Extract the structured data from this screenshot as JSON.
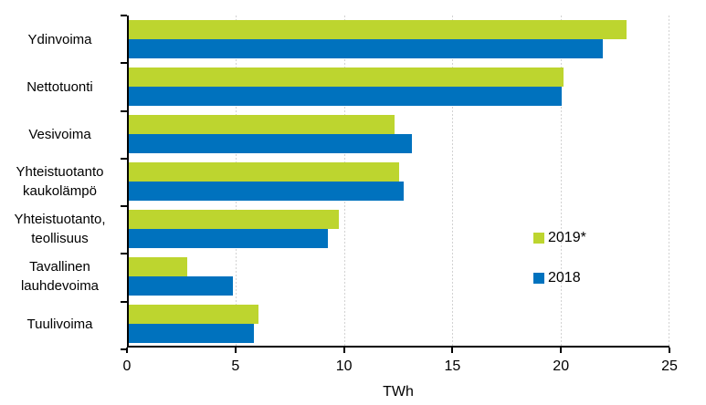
{
  "chart_data": {
    "type": "bar",
    "orientation": "horizontal",
    "title": "",
    "xlabel": "TWh",
    "ylabel": "",
    "xlim": [
      0,
      25
    ],
    "x_ticks": [
      0,
      5,
      10,
      15,
      20,
      25
    ],
    "grid": "vertical dotted gridlines at each x tick",
    "legend_position": "middle-right inside plot",
    "categories": [
      "Ydinvoima",
      "Nettotuonti",
      "Vesivoima",
      "Yhteistuotanto kaukolämpö",
      "Yhteistuotanto, teollisuus",
      "Tavallinen lauhdevoima",
      "Tuulivoima"
    ],
    "series": [
      {
        "name": "2019*",
        "color": "#BDD52F",
        "values": [
          23.0,
          20.1,
          12.3,
          12.5,
          9.7,
          2.7,
          6.0
        ]
      },
      {
        "name": "2018",
        "color": "#0072BE",
        "values": [
          21.9,
          20.0,
          13.1,
          12.7,
          9.2,
          4.8,
          5.8
        ]
      }
    ]
  },
  "colors": {
    "background": "#FFFFFF",
    "axis": "#000000",
    "gridline": "#D2D2D2",
    "text": "#000000",
    "series_2019": "#BDD52F",
    "series_2018": "#0072BE"
  }
}
